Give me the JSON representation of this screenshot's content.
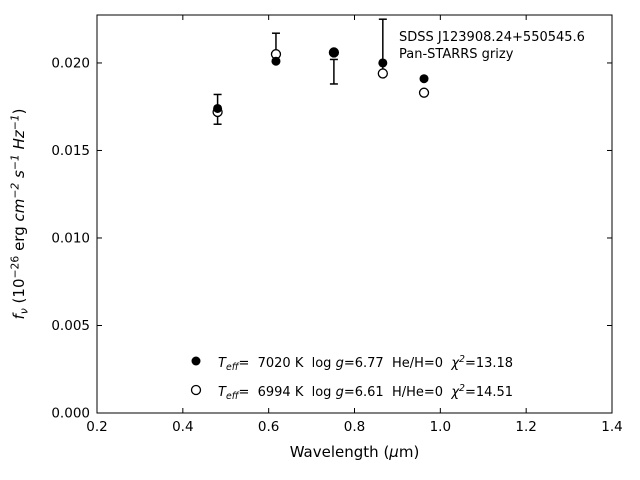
{
  "chart_data": {
    "type": "scatter",
    "title": "",
    "annotation_lines": [
      "SDSS J123908.24+550545.6",
      "Pan-STARRS grizy"
    ],
    "xlabel": "Wavelength (μm)",
    "ylabel": "f_ν (10^−26 erg cm^−2 s^−1 Hz^−1)",
    "xlabel_segments": [
      {
        "text": "Wavelength (",
        "style": "normal"
      },
      {
        "text": "μ",
        "style": "italic"
      },
      {
        "text": "m)",
        "style": "normal"
      }
    ],
    "ylabel_segments": [
      {
        "text": "f",
        "style": "italic"
      },
      {
        "text": "ν",
        "style": "sub-italic"
      },
      {
        "text": " (10",
        "style": "normal"
      },
      {
        "text": "−26",
        "style": "super"
      },
      {
        "text": " erg ",
        "style": "normal"
      },
      {
        "text": "cm",
        "style": "italic"
      },
      {
        "text": "−2",
        "style": "super-italic"
      },
      {
        "text": " ",
        "style": "normal"
      },
      {
        "text": "s",
        "style": "italic"
      },
      {
        "text": "−1",
        "style": "super-italic"
      },
      {
        "text": " ",
        "style": "normal"
      },
      {
        "text": "Hz",
        "style": "italic"
      },
      {
        "text": "−1",
        "style": "super-italic"
      },
      {
        "text": ")",
        "style": "normal"
      }
    ],
    "xlim": [
      0.2,
      1.4
    ],
    "ylim": [
      0.0,
      0.02274
    ],
    "xticks": [
      "0.2",
      "0.4",
      "0.6",
      "0.8",
      "1.0",
      "1.2",
      "1.4"
    ],
    "yticks": [
      "0.000",
      "0.005",
      "0.010",
      "0.015",
      "0.020"
    ],
    "grid": false,
    "legend_position": "lower-center",
    "colors": {
      "foreground": "#000000",
      "background": "#ffffff"
    },
    "bands": [
      "g",
      "r",
      "i",
      "z",
      "y"
    ],
    "x": [
      0.481,
      0.617,
      0.752,
      0.866,
      0.962
    ],
    "series": [
      {
        "name": "model-filled",
        "marker": "filled-circle",
        "params": {
          "t_eff": "7020 K",
          "log_g": "6.77",
          "composition": "He/H=0",
          "chi2": "13.18"
        },
        "values": [
          0.0174,
          0.0201,
          0.0206,
          0.02,
          0.0191
        ]
      },
      {
        "name": "model-open",
        "marker": "open-circle",
        "params": {
          "t_eff": "6994 K",
          "log_g": "6.61",
          "composition": "H/He=0",
          "chi2": "14.51"
        },
        "values": [
          0.0172,
          0.0205,
          0.0206,
          0.0194,
          0.0183
        ]
      }
    ],
    "error_bars": [
      {
        "band": "g",
        "x": 0.481,
        "lo": 0.0165,
        "hi": 0.0182,
        "cap_lo": true,
        "cap_hi": true
      },
      {
        "band": "r",
        "x": 0.617,
        "lo": 0.0203,
        "hi": 0.0217,
        "cap_lo": false,
        "cap_hi": true
      },
      {
        "band": "i",
        "x": 0.752,
        "lo": 0.0188,
        "hi": 0.0202,
        "cap_lo": true,
        "cap_hi": true
      },
      {
        "band": "z",
        "x": 0.866,
        "lo": 0.0194,
        "hi": 0.0225,
        "cap_lo": false,
        "cap_hi": true
      }
    ],
    "legend_entries": [
      {
        "marker": "filled-circle",
        "segments": [
          {
            "text": "T",
            "style": "italic"
          },
          {
            "text": "eff",
            "style": "sub-italic"
          },
          {
            "text": "=  7020 K  log ",
            "style": "normal"
          },
          {
            "text": "g",
            "style": "italic"
          },
          {
            "text": "=6.77  He/H=0  ",
            "style": "normal"
          },
          {
            "text": "χ",
            "style": "italic"
          },
          {
            "text": "2",
            "style": "super-italic"
          },
          {
            "text": "=13.18",
            "style": "normal"
          }
        ]
      },
      {
        "marker": "open-circle",
        "segments": [
          {
            "text": "T",
            "style": "italic"
          },
          {
            "text": "eff",
            "style": "sub-italic"
          },
          {
            "text": "=  6994 K  log ",
            "style": "normal"
          },
          {
            "text": "g",
            "style": "italic"
          },
          {
            "text": "=6.61  H/He=0  ",
            "style": "normal"
          },
          {
            "text": "χ",
            "style": "italic"
          },
          {
            "text": "2",
            "style": "super-italic"
          },
          {
            "text": "=14.51",
            "style": "normal"
          }
        ]
      }
    ]
  }
}
